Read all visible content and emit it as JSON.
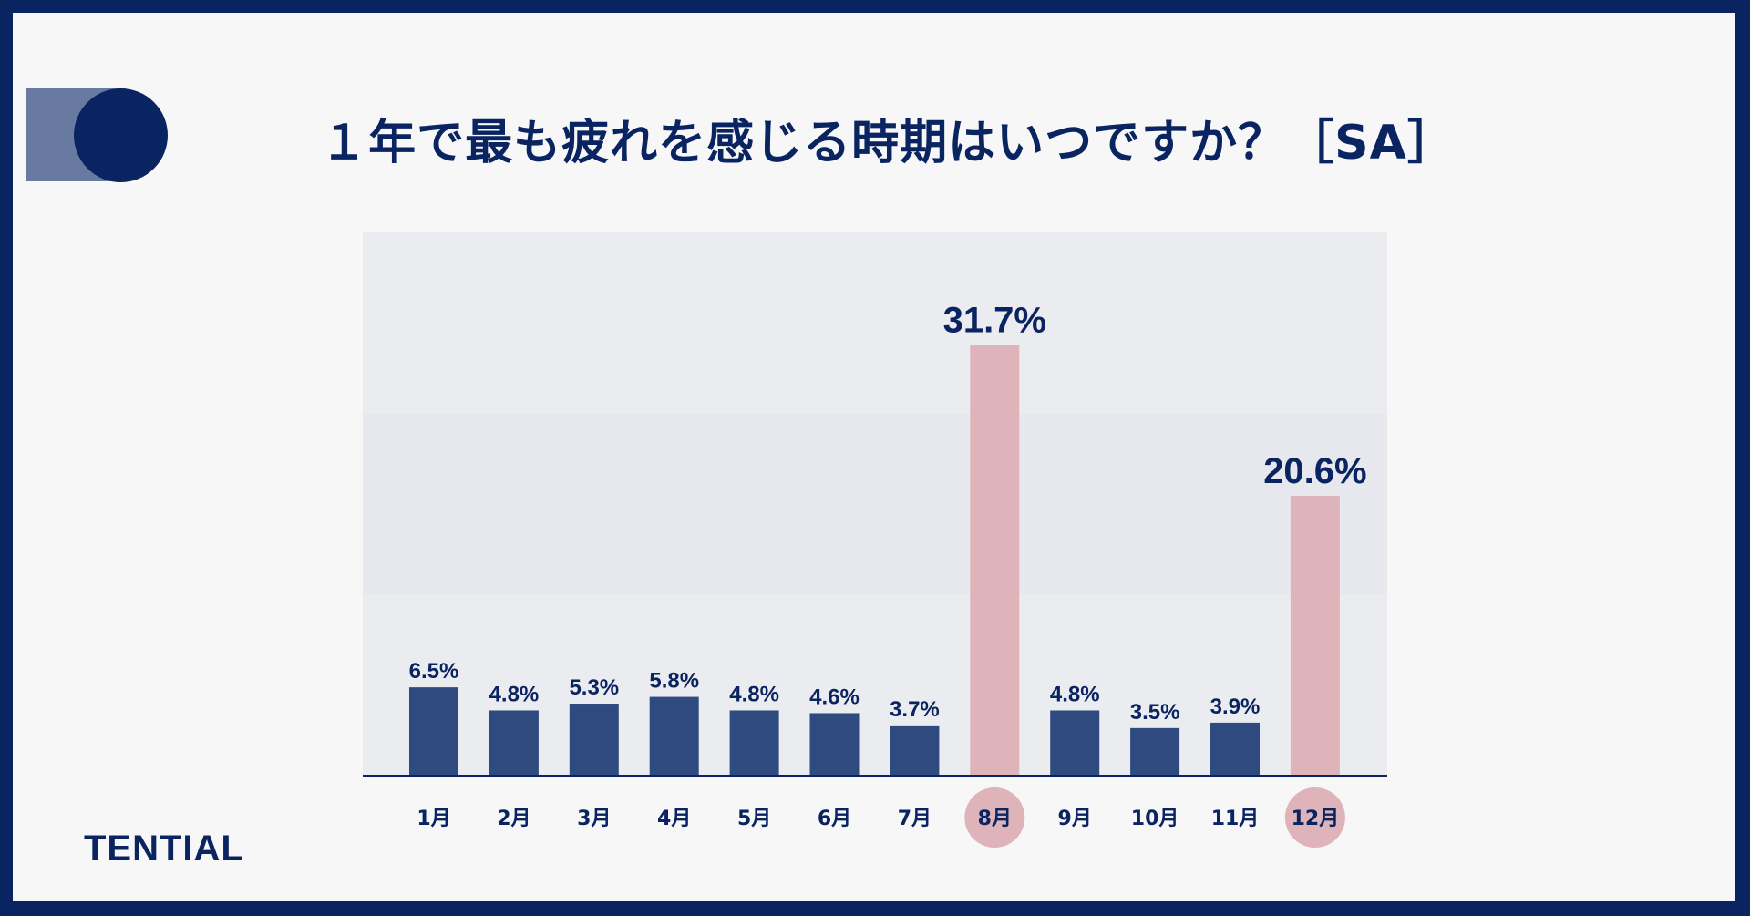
{
  "page": {
    "title": "１年で最も疲れを感じる時期はいつですか？［SA］",
    "logo": "TENTIAL"
  },
  "colors": {
    "navy": "#0a2461",
    "bar": "#2e4a7e",
    "highlight": "#deb3b9",
    "band_top": "#ebecf0",
    "band_mid": "#e6e8ed",
    "band_bottom": "#ebecf0"
  },
  "chart_data": {
    "type": "bar",
    "title": "１年で最も疲れを感じる時期はいつですか？［SA］",
    "xlabel": "",
    "ylabel": "",
    "ylim": [
      0,
      40
    ],
    "categories": [
      "1月",
      "2月",
      "3月",
      "4月",
      "5月",
      "6月",
      "7月",
      "8月",
      "9月",
      "10月",
      "11月",
      "12月"
    ],
    "values": [
      6.5,
      4.8,
      5.3,
      5.8,
      4.8,
      4.6,
      3.7,
      31.7,
      4.8,
      3.5,
      3.9,
      20.6
    ],
    "labels": [
      "6.5%",
      "4.8%",
      "5.3%",
      "5.8%",
      "4.8%",
      "4.6%",
      "3.7%",
      "31.7%",
      "4.8%",
      "3.5%",
      "3.9%",
      "20.6%"
    ],
    "highlighted": [
      "8月",
      "12月"
    ],
    "grid": false,
    "legend": "none"
  }
}
